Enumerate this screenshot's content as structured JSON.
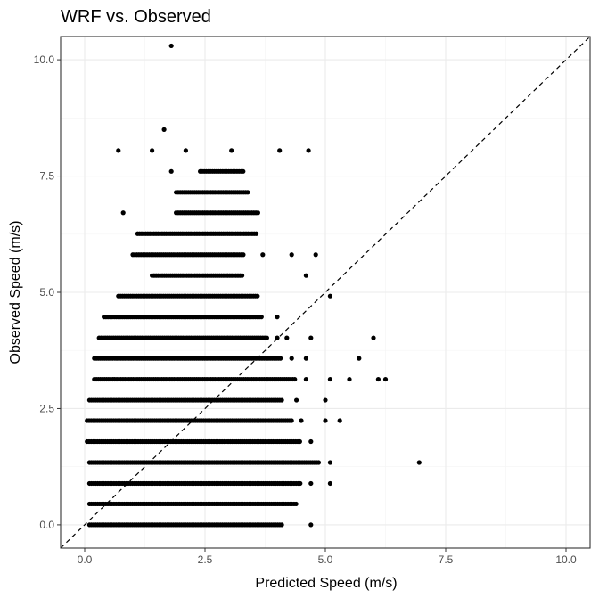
{
  "chart_data": {
    "type": "scatter",
    "title": "WRF vs. Observed",
    "xlabel": "Predicted Speed (m/s)",
    "ylabel": "Observed Speed (m/s)",
    "xlim": [
      -0.5,
      10.5
    ],
    "ylim": [
      -0.5,
      10.5
    ],
    "xticks": [
      0.0,
      2.5,
      5.0,
      7.5,
      10.0
    ],
    "yticks": [
      0.0,
      2.5,
      5.0,
      7.5,
      10.0
    ],
    "xtick_labels": [
      "0.0",
      "2.5",
      "5.0",
      "7.5",
      "10.0"
    ],
    "ytick_labels": [
      "0.0",
      "2.5",
      "5.0",
      "7.5",
      "10.0"
    ],
    "grid": true,
    "reference_line": {
      "slope": 1,
      "intercept": 0,
      "style": "dashed"
    },
    "point_color": "#000000",
    "bands": [
      {
        "y": 0.0,
        "x_min": 0.1,
        "x_max": 4.1,
        "extra_x": [
          4.7
        ]
      },
      {
        "y": 0.45,
        "x_min": 0.1,
        "x_max": 4.4,
        "extra_x": []
      },
      {
        "y": 0.89,
        "x_min": 0.1,
        "x_max": 4.5,
        "extra_x": [
          4.7,
          5.1
        ]
      },
      {
        "y": 1.34,
        "x_min": 0.1,
        "x_max": 4.9,
        "extra_x": [
          5.1,
          6.95
        ]
      },
      {
        "y": 1.79,
        "x_min": 0.05,
        "x_max": 4.5,
        "extra_x": [
          4.7
        ]
      },
      {
        "y": 2.24,
        "x_min": 0.05,
        "x_max": 4.3,
        "extra_x": [
          4.5,
          5.0,
          5.3
        ]
      },
      {
        "y": 2.68,
        "x_min": 0.1,
        "x_max": 4.1,
        "extra_x": [
          4.4,
          5.0
        ]
      },
      {
        "y": 3.13,
        "x_min": 0.2,
        "x_max": 4.4,
        "extra_x": [
          4.6,
          5.1,
          5.5,
          6.1,
          6.25
        ]
      },
      {
        "y": 3.58,
        "x_min": 0.2,
        "x_max": 4.1,
        "extra_x": [
          4.3,
          4.6,
          5.7
        ]
      },
      {
        "y": 4.02,
        "x_min": 0.3,
        "x_max": 3.8,
        "extra_x": [
          4.0,
          4.2,
          4.7,
          6.0
        ]
      },
      {
        "y": 4.47,
        "x_min": 0.4,
        "x_max": 3.7,
        "extra_x": [
          4.0
        ]
      },
      {
        "y": 4.92,
        "x_min": 0.7,
        "x_max": 3.6,
        "extra_x": [
          5.1
        ]
      },
      {
        "y": 5.36,
        "x_min": 1.4,
        "x_max": 3.3,
        "extra_x": [
          4.6
        ]
      },
      {
        "y": 5.81,
        "x_min": 1.0,
        "x_max": 3.3,
        "extra_x": [
          3.7,
          4.3,
          4.8
        ]
      },
      {
        "y": 6.26,
        "x_min": 1.1,
        "x_max": 3.6,
        "extra_x": []
      },
      {
        "y": 6.71,
        "x_min": 1.9,
        "x_max": 3.6,
        "extra_x": [
          0.8
        ]
      },
      {
        "y": 7.15,
        "x_min": 1.9,
        "x_max": 3.4,
        "extra_x": []
      },
      {
        "y": 7.6,
        "x_min": 2.4,
        "x_max": 3.3,
        "extra_x": [
          1.8
        ]
      }
    ],
    "outliers": [
      {
        "x": 0.7,
        "y": 8.05
      },
      {
        "x": 1.4,
        "y": 8.05
      },
      {
        "x": 2.1,
        "y": 8.05
      },
      {
        "x": 3.05,
        "y": 8.05
      },
      {
        "x": 4.05,
        "y": 8.05
      },
      {
        "x": 4.65,
        "y": 8.05
      },
      {
        "x": 1.65,
        "y": 8.5
      },
      {
        "x": 1.8,
        "y": 10.3
      }
    ]
  }
}
